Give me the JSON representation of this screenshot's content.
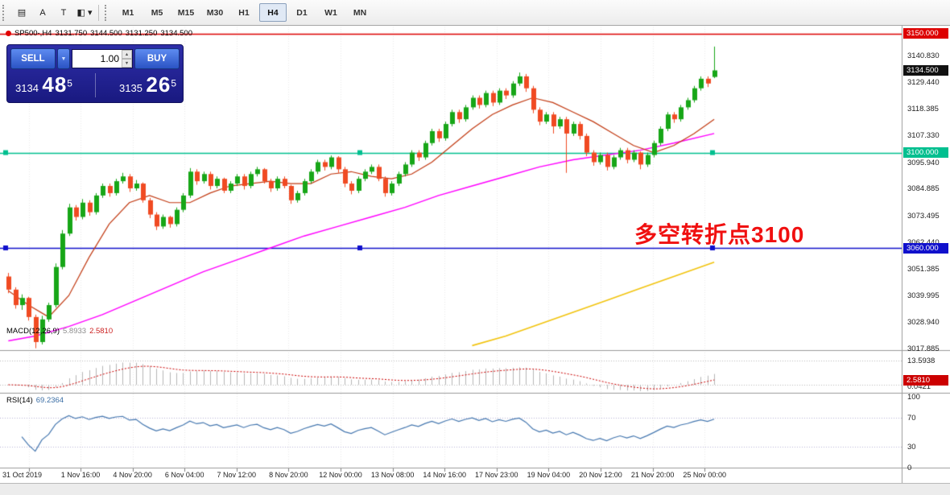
{
  "toolbar": {
    "icons": [
      {
        "name": "chart-list-icon",
        "glyph": "▤"
      },
      {
        "name": "font-icon",
        "glyph": "A"
      },
      {
        "name": "text-cursor-icon",
        "glyph": "T"
      },
      {
        "name": "color-scheme-icon",
        "glyph": "◧ ▾"
      }
    ],
    "timeframes": [
      {
        "label": "M1",
        "active": false
      },
      {
        "label": "M5",
        "active": false
      },
      {
        "label": "M15",
        "active": false
      },
      {
        "label": "M30",
        "active": false
      },
      {
        "label": "H1",
        "active": false
      },
      {
        "label": "H4",
        "active": true
      },
      {
        "label": "D1",
        "active": false
      },
      {
        "label": "W1",
        "active": false
      },
      {
        "label": "MN",
        "active": false
      }
    ]
  },
  "chart_data": {
    "type": "candlestick",
    "symbol": "SP500-,H4",
    "title_open": "3131.750",
    "title_high": "3144.500",
    "title_low": "3131.250",
    "title_close": "3134.500",
    "y_axis_range": [
      3016.9,
      3152.9
    ],
    "colors": {
      "up": "#17a617",
      "down": "#f04a22",
      "ma_red": "#c23a12",
      "ma_magenta": "#ff00ff",
      "ma_yellow": "#f2c40e",
      "grid": "#ebebeb",
      "hist": "#b6b6b6",
      "signal": "#cc0000",
      "rsi_line": "#4678b0",
      "line_red": "#dd0000",
      "line_green": "#00bf8f",
      "line_blue": "#1010cc",
      "current_badge": "#111111"
    },
    "candles": [
      [
        3048.0,
        3049.5,
        3041.0,
        3042.5
      ],
      [
        3042.5,
        3043.5,
        3034.5,
        3036.0
      ],
      [
        3036.0,
        3040.5,
        3034.0,
        3039.0
      ],
      [
        3039.0,
        3039.5,
        3029.5,
        3031.0
      ],
      [
        3031.0,
        3032.0,
        3017.9,
        3020.5
      ],
      [
        3020.5,
        3031.5,
        3019.5,
        3030.0
      ],
      [
        3030.0,
        3037.0,
        3029.0,
        3036.0
      ],
      [
        3036.0,
        3053.5,
        3035.0,
        3052.0
      ],
      [
        3052.0,
        3067.5,
        3051.0,
        3066.0
      ],
      [
        3066.0,
        3078.5,
        3065.0,
        3077.0
      ],
      [
        3077.0,
        3078.0,
        3071.5,
        3073.0
      ],
      [
        3073.0,
        3080.5,
        3072.0,
        3079.0
      ],
      [
        3079.0,
        3080.0,
        3073.5,
        3075.0
      ],
      [
        3075.0,
        3083.0,
        3074.0,
        3082.0
      ],
      [
        3082.0,
        3087.0,
        3081.0,
        3086.0
      ],
      [
        3086.0,
        3087.0,
        3081.5,
        3083.0
      ],
      [
        3083.0,
        3089.0,
        3082.0,
        3088.0
      ],
      [
        3088.0,
        3091.5,
        3087.0,
        3090.0
      ],
      [
        3090.0,
        3091.0,
        3083.5,
        3085.0
      ],
      [
        3085.0,
        3088.5,
        3084.0,
        3087.0
      ],
      [
        3087.0,
        3087.5,
        3079.0,
        3080.0
      ],
      [
        3080.0,
        3081.0,
        3072.5,
        3074.0
      ],
      [
        3074.0,
        3075.0,
        3067.5,
        3069.0
      ],
      [
        3069.0,
        3074.0,
        3068.0,
        3073.0
      ],
      [
        3073.0,
        3073.5,
        3068.5,
        3070.0
      ],
      [
        3070.0,
        3077.0,
        3069.0,
        3076.0
      ],
      [
        3076.0,
        3083.0,
        3075.0,
        3082.0
      ],
      [
        3082.0,
        3093.5,
        3081.0,
        3092.0
      ],
      [
        3092.0,
        3093.0,
        3086.5,
        3088.0
      ],
      [
        3088.0,
        3092.0,
        3087.0,
        3091.0
      ],
      [
        3091.0,
        3092.0,
        3084.5,
        3086.0
      ],
      [
        3086.0,
        3090.0,
        3085.0,
        3089.0
      ],
      [
        3089.0,
        3089.5,
        3083.0,
        3084.0
      ],
      [
        3084.0,
        3088.0,
        3083.0,
        3087.0
      ],
      [
        3087.0,
        3091.0,
        3086.0,
        3090.0
      ],
      [
        3090.0,
        3091.0,
        3084.5,
        3086.0
      ],
      [
        3086.0,
        3092.0,
        3085.0,
        3091.0
      ],
      [
        3091.0,
        3094.0,
        3090.0,
        3093.0
      ],
      [
        3093.0,
        3093.5,
        3087.0,
        3088.0
      ],
      [
        3088.0,
        3089.0,
        3083.5,
        3085.0
      ],
      [
        3085.0,
        3090.0,
        3084.0,
        3089.0
      ],
      [
        3089.0,
        3090.0,
        3085.0,
        3086.0
      ],
      [
        3086.0,
        3086.5,
        3078.5,
        3080.0
      ],
      [
        3080.0,
        3084.0,
        3079.0,
        3083.0
      ],
      [
        3083.0,
        3089.0,
        3082.0,
        3088.0
      ],
      [
        3088.0,
        3093.0,
        3087.0,
        3092.0
      ],
      [
        3092.0,
        3097.0,
        3091.0,
        3096.0
      ],
      [
        3096.0,
        3097.0,
        3092.5,
        3094.0
      ],
      [
        3094.0,
        3098.8,
        3093.0,
        3098.0
      ],
      [
        3098.0,
        3098.5,
        3091.5,
        3093.0
      ],
      [
        3093.0,
        3094.0,
        3085.5,
        3087.0
      ],
      [
        3087.0,
        3088.0,
        3082.5,
        3084.0
      ],
      [
        3084.0,
        3090.0,
        3083.0,
        3089.0
      ],
      [
        3089.0,
        3093.0,
        3088.0,
        3092.0
      ],
      [
        3092.0,
        3095.0,
        3091.0,
        3094.0
      ],
      [
        3094.0,
        3095.0,
        3088.0,
        3089.0
      ],
      [
        3089.0,
        3090.0,
        3081.5,
        3083.0
      ],
      [
        3083.0,
        3088.0,
        3082.0,
        3087.0
      ],
      [
        3087.0,
        3092.0,
        3086.0,
        3091.0
      ],
      [
        3091.0,
        3096.0,
        3090.0,
        3095.0
      ],
      [
        3095.0,
        3101.0,
        3094.0,
        3100.0
      ],
      [
        3100.0,
        3101.0,
        3096.5,
        3098.0
      ],
      [
        3098.0,
        3105.0,
        3097.0,
        3104.0
      ],
      [
        3104.0,
        3110.0,
        3103.0,
        3109.0
      ],
      [
        3109.0,
        3110.0,
        3104.5,
        3106.0
      ],
      [
        3106.0,
        3113.0,
        3105.0,
        3112.0
      ],
      [
        3112.0,
        3118.0,
        3111.0,
        3117.0
      ],
      [
        3117.0,
        3118.0,
        3112.5,
        3114.0
      ],
      [
        3114.0,
        3120.0,
        3113.0,
        3119.0
      ],
      [
        3119.0,
        3124.0,
        3118.0,
        3123.0
      ],
      [
        3123.0,
        3124.0,
        3118.5,
        3120.0
      ],
      [
        3120.0,
        3126.0,
        3119.0,
        3125.0
      ],
      [
        3125.0,
        3126.0,
        3119.5,
        3121.0
      ],
      [
        3121.0,
        3127.0,
        3120.0,
        3126.0
      ],
      [
        3126.0,
        3127.0,
        3122.5,
        3124.0
      ],
      [
        3124.0,
        3130.0,
        3123.0,
        3129.0
      ],
      [
        3129.0,
        3133.6,
        3128.0,
        3132.0
      ],
      [
        3132.0,
        3133.0,
        3125.5,
        3127.0
      ],
      [
        3127.0,
        3128.0,
        3116.5,
        3118.0
      ],
      [
        3118.0,
        3119.0,
        3111.5,
        3113.0
      ],
      [
        3113.0,
        3117.0,
        3112.0,
        3116.0
      ],
      [
        3116.0,
        3117.0,
        3108.0,
        3111.0
      ],
      [
        3111.0,
        3115.0,
        3110.0,
        3114.0
      ],
      [
        3114.0,
        3115.0,
        3091.5,
        3108.0
      ],
      [
        3108.0,
        3113.0,
        3107.0,
        3112.0
      ],
      [
        3112.0,
        3113.0,
        3105.5,
        3107.0
      ],
      [
        3107.0,
        3108.0,
        3098.5,
        3100.0
      ],
      [
        3100.0,
        3101.0,
        3094.5,
        3096.0
      ],
      [
        3096.0,
        3100.0,
        3095.0,
        3099.0
      ],
      [
        3099.0,
        3100.0,
        3092.5,
        3094.0
      ],
      [
        3094.0,
        3099.0,
        3093.0,
        3098.0
      ],
      [
        3098.0,
        3102.0,
        3097.0,
        3101.0
      ],
      [
        3101.0,
        3102.0,
        3095.5,
        3097.0
      ],
      [
        3097.0,
        3101.0,
        3096.0,
        3100.0
      ],
      [
        3100.0,
        3100.5,
        3093.0,
        3095.0
      ],
      [
        3095.0,
        3100.0,
        3094.0,
        3099.0
      ],
      [
        3099.0,
        3105.0,
        3098.0,
        3104.0
      ],
      [
        3104.0,
        3111.0,
        3103.0,
        3110.0
      ],
      [
        3110.0,
        3117.0,
        3109.0,
        3116.0
      ],
      [
        3116.0,
        3117.0,
        3112.5,
        3114.0
      ],
      [
        3114.0,
        3120.0,
        3113.0,
        3119.0
      ],
      [
        3119.0,
        3123.0,
        3118.0,
        3122.0
      ],
      [
        3122.0,
        3128.0,
        3121.0,
        3127.0
      ],
      [
        3127.0,
        3132.0,
        3126.0,
        3131.0
      ],
      [
        3131.0,
        3132.0,
        3127.5,
        3129.0
      ],
      [
        3131.75,
        3144.5,
        3131.25,
        3134.5
      ]
    ],
    "ma_red": [
      [
        1,
        3042
      ],
      [
        4,
        3036
      ],
      [
        7,
        3031
      ],
      [
        10,
        3040
      ],
      [
        13,
        3056
      ],
      [
        16,
        3070
      ],
      [
        19,
        3079
      ],
      [
        22,
        3082
      ],
      [
        25,
        3079
      ],
      [
        28,
        3079
      ],
      [
        31,
        3083
      ],
      [
        34,
        3086
      ],
      [
        37,
        3087
      ],
      [
        40,
        3088
      ],
      [
        43,
        3087
      ],
      [
        46,
        3087
      ],
      [
        49,
        3091
      ],
      [
        52,
        3092
      ],
      [
        55,
        3090
      ],
      [
        58,
        3089
      ],
      [
        61,
        3091
      ],
      [
        64,
        3096
      ],
      [
        67,
        3103
      ],
      [
        70,
        3110
      ],
      [
        73,
        3116
      ],
      [
        76,
        3120
      ],
      [
        79,
        3123
      ],
      [
        82,
        3121
      ],
      [
        85,
        3117
      ],
      [
        88,
        3113
      ],
      [
        91,
        3108
      ],
      [
        94,
        3103
      ],
      [
        97,
        3100
      ],
      [
        100,
        3103
      ],
      [
        103,
        3108
      ],
      [
        106,
        3114
      ]
    ],
    "ma_magenta": [
      [
        1,
        3021
      ],
      [
        5,
        3023
      ],
      [
        10,
        3027
      ],
      [
        15,
        3032
      ],
      [
        20,
        3038
      ],
      [
        25,
        3044
      ],
      [
        30,
        3050
      ],
      [
        35,
        3055
      ],
      [
        40,
        3060
      ],
      [
        45,
        3065
      ],
      [
        50,
        3069
      ],
      [
        55,
        3073
      ],
      [
        60,
        3077
      ],
      [
        65,
        3082
      ],
      [
        70,
        3086
      ],
      [
        75,
        3090
      ],
      [
        80,
        3094
      ],
      [
        85,
        3097
      ],
      [
        90,
        3099
      ],
      [
        95,
        3101
      ],
      [
        100,
        3104
      ],
      [
        106,
        3108
      ]
    ],
    "ma_yellow": [
      [
        70,
        3019
      ],
      [
        75,
        3023
      ],
      [
        80,
        3028
      ],
      [
        85,
        3033
      ],
      [
        90,
        3038
      ],
      [
        95,
        3043
      ],
      [
        100,
        3048
      ],
      [
        106,
        3054
      ]
    ],
    "hlines": [
      {
        "price": 3150,
        "label": "3150.000",
        "color": "#dd0000",
        "handles": false
      },
      {
        "price": 3100,
        "label": "3100.000",
        "color": "#00bf8f",
        "handles": true
      },
      {
        "price": 3060,
        "label": "3060.000",
        "color": "#1010cc",
        "handles": true
      }
    ],
    "current_price": {
      "price": 3134.5,
      "label": "3134.500"
    },
    "price_ticks": [
      {
        "label": "3140.830",
        "p": 3140.83
      },
      {
        "label": "3129.440",
        "p": 3129.44
      },
      {
        "label": "3118.385",
        "p": 3118.385
      },
      {
        "label": "3107.330",
        "p": 3107.33
      },
      {
        "label": "3095.940",
        "p": 3095.94
      },
      {
        "label": "3084.885",
        "p": 3084.885
      },
      {
        "label": "3073.495",
        "p": 3073.495
      },
      {
        "label": "3062.440",
        "p": 3062.44
      },
      {
        "label": "3051.385",
        "p": 3051.385
      },
      {
        "label": "3039.995",
        "p": 3039.995
      },
      {
        "label": "3028.940",
        "p": 3028.94
      },
      {
        "label": "3017.885",
        "p": 3017.885
      }
    ],
    "time_ticks": [
      "31 Oct 2019",
      "1 Nov 16:00",
      "4 Nov 20:00",
      "6 Nov 04:00",
      "7 Nov 12:00",
      "8 Nov 20:00",
      "12 Nov 00:00",
      "13 Nov 08:00",
      "14 Nov 16:00",
      "17 Nov 23:00",
      "19 Nov 04:00",
      "20 Nov 12:00",
      "21 Nov 20:00",
      "25 Nov 00:00"
    ],
    "annotation": {
      "text": "多空转折点3100",
      "color": "#f01010"
    },
    "macd": {
      "name": "MACD(12,26,9)",
      "value_main": "5.8933",
      "value_signal": "2.5810",
      "axis_top": "13.5938",
      "axis_zero": "0.0421",
      "signal_badge": "2.5810",
      "axis_top_value": 13.5938,
      "signal_value": 2.581
    },
    "rsi": {
      "name": "RSI(14)",
      "value": "69.2364",
      "axis": [
        {
          "label": "100",
          "v": 100
        },
        {
          "label": "70",
          "v": 70
        },
        {
          "label": "30",
          "v": 30
        },
        {
          "label": "0",
          "v": 0
        }
      ],
      "levels": [
        70,
        30
      ]
    },
    "trade_panel": {
      "sell": "SELL",
      "buy": "BUY",
      "volume": "1.00",
      "caret": "▼",
      "spin_up": "▲",
      "spin_down": "▼",
      "bid": {
        "prefix": "3134",
        "main": "48",
        "sup": "5"
      },
      "ask": {
        "prefix": "3135",
        "main": "26",
        "sup": "5"
      }
    }
  }
}
